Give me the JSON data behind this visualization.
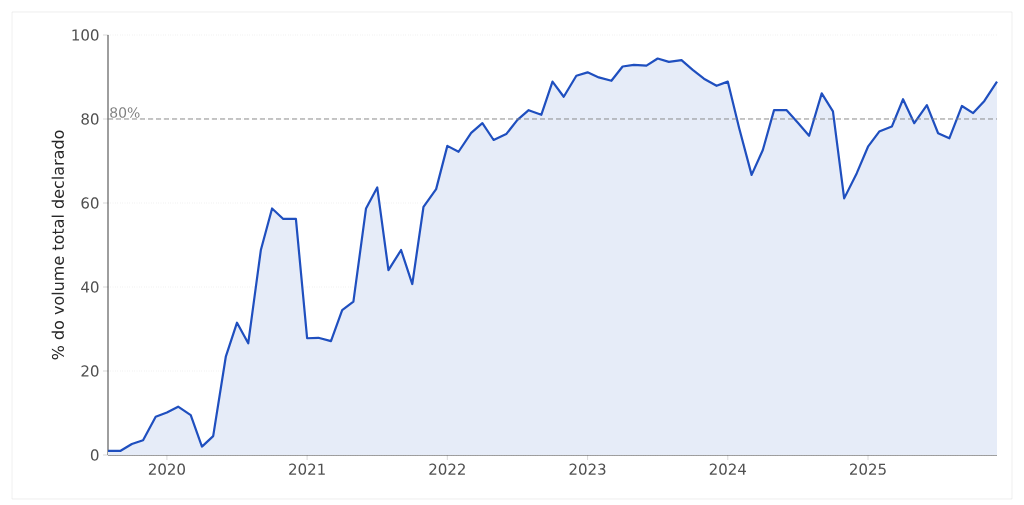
{
  "chart_data": {
    "type": "area",
    "ylabel": "% do volume total declarado",
    "x": [
      "2019-08",
      "2019-09",
      "2019-10",
      "2019-11",
      "2019-12",
      "2020-01",
      "2020-02",
      "2020-03",
      "2020-04",
      "2020-05",
      "2020-06",
      "2020-07",
      "2020-08",
      "2020-09",
      "2020-10",
      "2020-11",
      "2020-12",
      "2021-01",
      "2021-02",
      "2021-03",
      "2021-04",
      "2021-05",
      "2021-06",
      "2021-07",
      "2021-08",
      "2021-09",
      "2021-10",
      "2021-11",
      "2021-12",
      "2022-01",
      "2022-02",
      "2022-03",
      "2022-04",
      "2022-05",
      "2022-06",
      "2022-07",
      "2022-08",
      "2022-09",
      "2022-10",
      "2022-11",
      "2022-12",
      "2023-01",
      "2023-02",
      "2023-03",
      "2023-04",
      "2023-05",
      "2023-06",
      "2023-07",
      "2023-08",
      "2023-09",
      "2023-10",
      "2023-11",
      "2023-12",
      "2024-01",
      "2024-02",
      "2024-03",
      "2024-04",
      "2024-05",
      "2024-06",
      "2024-07",
      "2024-08",
      "2024-09",
      "2024-10",
      "2024-11",
      "2024-12",
      "2025-01",
      "2025-02",
      "2025-03",
      "2025-04",
      "2025-05",
      "2025-06",
      "2025-07",
      "2025-08",
      "2025-09",
      "2025-10",
      "2025-11",
      "2025-12"
    ],
    "series": [
      {
        "color": "#1f4fbf",
        "values": [
          1,
          1,
          2.6,
          3.5,
          9.1,
          10.1,
          11.5,
          9.5,
          2,
          4.5,
          23.4,
          31.5,
          26.6,
          48.8,
          58.7,
          56.2,
          56.2,
          27.8,
          27.9,
          27.1,
          34.5,
          36.5,
          58.7,
          63.7,
          44,
          48.8,
          40.7,
          59.1,
          63.3,
          73.6,
          72.2,
          76.7,
          79,
          75,
          76.4,
          79.8,
          82.1,
          81,
          88.9,
          85.3,
          90.3,
          91.1,
          89.9,
          89.1,
          92.5,
          92.9,
          92.7,
          94.4,
          93.6,
          94,
          91.7,
          89.6,
          87.9,
          88.9,
          78,
          66.7,
          72.6,
          82.1,
          82.1,
          79.1,
          76,
          86.1,
          81.8,
          61.1,
          67.1,
          73.4,
          77,
          78.2,
          84.7,
          79,
          83.3,
          76.6,
          75.4,
          83.1,
          81.4,
          84.3,
          88.9
        ]
      }
    ],
    "xlim": [
      "2019-08",
      "2025-12"
    ],
    "xticks": [
      "2020",
      "2021",
      "2022",
      "2023",
      "2024",
      "2025"
    ],
    "ylim": [
      0,
      100
    ],
    "yticks": [
      0,
      20,
      40,
      60,
      80,
      100
    ],
    "grid": "y",
    "ref_lines": [
      {
        "axis": "y",
        "value": 80,
        "label": "80%",
        "color": "#808080",
        "line_style": "dashed"
      }
    ]
  }
}
